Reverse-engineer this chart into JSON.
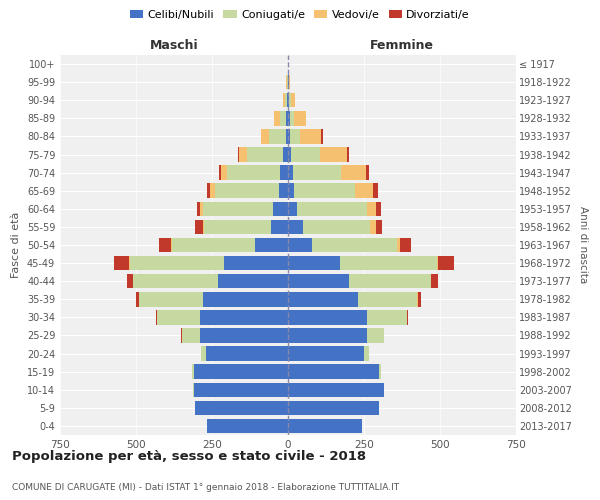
{
  "age_groups": [
    "0-4",
    "5-9",
    "10-14",
    "15-19",
    "20-24",
    "25-29",
    "30-34",
    "35-39",
    "40-44",
    "45-49",
    "50-54",
    "55-59",
    "60-64",
    "65-69",
    "70-74",
    "75-79",
    "80-84",
    "85-89",
    "90-94",
    "95-99",
    "100+"
  ],
  "birth_years": [
    "2013-2017",
    "2008-2012",
    "2003-2007",
    "1998-2002",
    "1993-1997",
    "1988-1992",
    "1983-1987",
    "1978-1982",
    "1973-1977",
    "1968-1972",
    "1963-1967",
    "1958-1962",
    "1953-1957",
    "1948-1952",
    "1943-1947",
    "1938-1942",
    "1933-1937",
    "1928-1932",
    "1923-1927",
    "1918-1922",
    "≤ 1917"
  ],
  "colors": {
    "celibi": "#4472c4",
    "coniugati": "#c5d9a0",
    "vedovi": "#f5c06f",
    "divorziati": "#c0392b"
  },
  "males": {
    "celibi": [
      265,
      305,
      310,
      310,
      270,
      290,
      290,
      280,
      230,
      210,
      110,
      55,
      50,
      30,
      25,
      15,
      8,
      5,
      3,
      1,
      1
    ],
    "coniugati": [
      0,
      1,
      2,
      5,
      15,
      60,
      140,
      210,
      280,
      310,
      270,
      220,
      230,
      210,
      175,
      120,
      55,
      20,
      8,
      2,
      0
    ],
    "vedovi": [
      0,
      0,
      0,
      0,
      0,
      0,
      0,
      0,
      0,
      2,
      5,
      5,
      10,
      15,
      20,
      25,
      25,
      20,
      5,
      2,
      0
    ],
    "divorziati": [
      0,
      0,
      0,
      0,
      0,
      2,
      5,
      10,
      20,
      50,
      40,
      25,
      10,
      10,
      8,
      5,
      0,
      0,
      0,
      0,
      0
    ]
  },
  "females": {
    "nubili": [
      245,
      300,
      315,
      300,
      250,
      260,
      260,
      230,
      200,
      170,
      80,
      50,
      30,
      20,
      15,
      10,
      5,
      5,
      3,
      2,
      1
    ],
    "coniugate": [
      0,
      0,
      2,
      5,
      15,
      55,
      130,
      195,
      270,
      320,
      280,
      220,
      230,
      200,
      160,
      95,
      35,
      15,
      6,
      2,
      0
    ],
    "vedove": [
      0,
      0,
      0,
      0,
      0,
      0,
      0,
      2,
      2,
      5,
      10,
      20,
      30,
      60,
      80,
      90,
      70,
      40,
      15,
      3,
      0
    ],
    "divorziate": [
      0,
      0,
      0,
      0,
      0,
      2,
      5,
      10,
      20,
      50,
      35,
      20,
      15,
      15,
      10,
      5,
      5,
      0,
      0,
      0,
      0
    ]
  },
  "xlim": 750,
  "title": "Popolazione per età, sesso e stato civile - 2018",
  "subtitle": "COMUNE DI CARUGATE (MI) - Dati ISTAT 1° gennaio 2018 - Elaborazione TUTTITALIA.IT",
  "ylabel_left": "Fasce di età",
  "ylabel_right": "Anni di nascita",
  "xlabel_maschi": "Maschi",
  "xlabel_femmine": "Femmine",
  "background_color": "#f0f0f0",
  "grid_color": "#cccccc"
}
